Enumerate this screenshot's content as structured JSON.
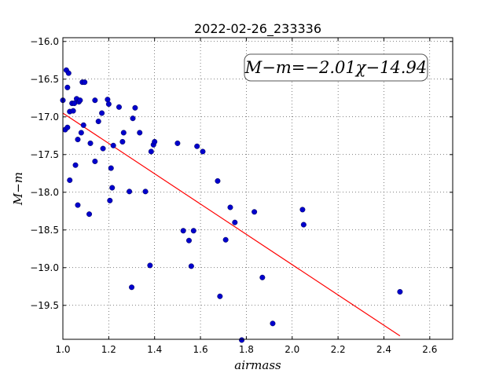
{
  "chart_data": {
    "type": "scatter",
    "title": "2022-02-26_233336",
    "xlabel": "airmass",
    "ylabel": "M−m",
    "xlim": [
      1.0,
      2.7
    ],
    "ylim": [
      -15.95,
      -19.95
    ],
    "y_inverted": true,
    "x_ticks": [
      1.0,
      1.2,
      1.4,
      1.6,
      1.8,
      2.0,
      2.2,
      2.4,
      2.6
    ],
    "x_tick_labels": [
      "1.0",
      "1.2",
      "1.4",
      "1.6",
      "1.8",
      "2.0",
      "2.2",
      "2.4",
      "2.6"
    ],
    "y_ticks": [
      -16.0,
      -16.5,
      -17.0,
      -17.5,
      -18.0,
      -18.5,
      -19.0,
      -19.5
    ],
    "y_tick_labels": [
      "−16.0",
      "−16.5",
      "−17.0",
      "−17.5",
      "−18.0",
      "−18.5",
      "−19.0",
      "−19.5"
    ],
    "grid": true,
    "annotation": "M−m=−2.01χ−14.94",
    "point_color": "#0000cc",
    "fit_color": "#ff0000",
    "points": [
      [
        1.0,
        -16.78
      ],
      [
        1.01,
        -17.17
      ],
      [
        1.015,
        -16.38
      ],
      [
        1.02,
        -16.61
      ],
      [
        1.02,
        -17.14
      ],
      [
        1.025,
        -16.42
      ],
      [
        1.03,
        -16.93
      ],
      [
        1.03,
        -17.84
      ],
      [
        1.04,
        -16.82
      ],
      [
        1.045,
        -16.92
      ],
      [
        1.05,
        -16.82
      ],
      [
        1.055,
        -17.64
      ],
      [
        1.06,
        -16.76
      ],
      [
        1.065,
        -17.3
      ],
      [
        1.065,
        -18.17
      ],
      [
        1.07,
        -16.8
      ],
      [
        1.075,
        -16.78
      ],
      [
        1.08,
        -17.21
      ],
      [
        1.085,
        -16.54
      ],
      [
        1.09,
        -17.11
      ],
      [
        1.095,
        -16.54
      ],
      [
        1.115,
        -18.29
      ],
      [
        1.12,
        -17.35
      ],
      [
        1.14,
        -16.78
      ],
      [
        1.14,
        -17.59
      ],
      [
        1.155,
        -17.06
      ],
      [
        1.17,
        -16.95
      ],
      [
        1.175,
        -17.42
      ],
      [
        1.195,
        -16.77
      ],
      [
        1.2,
        -16.83
      ],
      [
        1.205,
        -18.11
      ],
      [
        1.21,
        -17.68
      ],
      [
        1.215,
        -17.94
      ],
      [
        1.22,
        -17.38
      ],
      [
        1.245,
        -16.87
      ],
      [
        1.26,
        -17.33
      ],
      [
        1.265,
        -17.21
      ],
      [
        1.29,
        -17.99
      ],
      [
        1.3,
        -19.26
      ],
      [
        1.305,
        -17.02
      ],
      [
        1.315,
        -16.88
      ],
      [
        1.335,
        -17.21
      ],
      [
        1.36,
        -17.99
      ],
      [
        1.38,
        -18.97
      ],
      [
        1.385,
        -17.46
      ],
      [
        1.395,
        -17.37
      ],
      [
        1.4,
        -17.33
      ],
      [
        1.5,
        -17.35
      ],
      [
        1.525,
        -18.51
      ],
      [
        1.55,
        -18.64
      ],
      [
        1.56,
        -18.98
      ],
      [
        1.57,
        -18.51
      ],
      [
        1.585,
        -17.39
      ],
      [
        1.61,
        -17.46
      ],
      [
        1.675,
        -17.85
      ],
      [
        1.685,
        -19.38
      ],
      [
        1.71,
        -18.63
      ],
      [
        1.73,
        -18.2
      ],
      [
        1.75,
        -18.4
      ],
      [
        1.78,
        -19.96
      ],
      [
        1.835,
        -18.26
      ],
      [
        1.87,
        -19.13
      ],
      [
        1.915,
        -19.74
      ],
      [
        2.045,
        -18.23
      ],
      [
        2.05,
        -18.43
      ],
      [
        2.47,
        -19.32
      ]
    ],
    "fit": {
      "slope": -2.01,
      "intercept": -14.94,
      "x_range": [
        1.0,
        2.47
      ]
    }
  }
}
